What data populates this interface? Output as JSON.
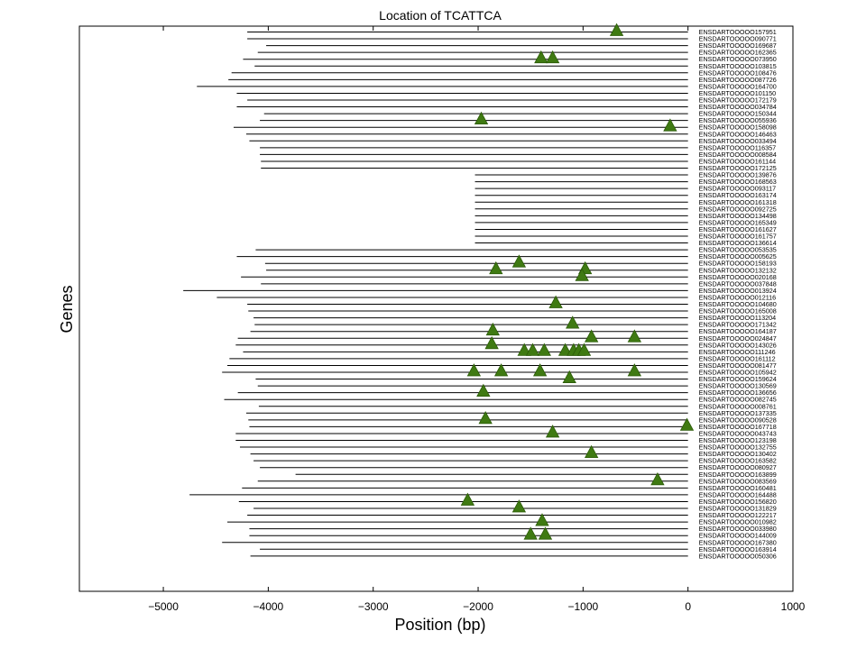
{
  "chart_data": {
    "type": "scatter",
    "title": "Location of TCATTCA",
    "xlabel": "Position (bp)",
    "ylabel": "Genes",
    "xlim": [
      -5800,
      1000
    ],
    "xticks": [
      -5000,
      -4000,
      -3000,
      -2000,
      -1000,
      0,
      1000
    ],
    "xtick_labels": [
      "−5000",
      "−4000",
      "−3000",
      "−2000",
      "−1000",
      "0",
      "1000"
    ],
    "grid": false,
    "marker": "triangle-up",
    "colors": {
      "line": "#000000",
      "marker": "#3f7a12",
      "marker_edge": "#2b5a08"
    },
    "genes": [
      {
        "name": "ENSDARTOOOOO157951",
        "start": -4200,
        "sites": [
          -680
        ]
      },
      {
        "name": "ENSDARTOOOOO090771",
        "start": -4200,
        "sites": []
      },
      {
        "name": "ENSDARTOOOOO169687",
        "start": -4020,
        "sites": []
      },
      {
        "name": "ENSDARTOOOOO162365",
        "start": -4100,
        "sites": []
      },
      {
        "name": "ENSDARTOOOOO073950",
        "start": -4240,
        "sites": [
          -1400,
          -1290
        ]
      },
      {
        "name": "ENSDARTOOOOO103815",
        "start": -4130,
        "sites": []
      },
      {
        "name": "ENSDARTOOOOO108476",
        "start": -4350,
        "sites": []
      },
      {
        "name": "ENSDARTOOOOO087726",
        "start": -4380,
        "sites": []
      },
      {
        "name": "ENSDARTOOOOO164700",
        "start": -4680,
        "sites": []
      },
      {
        "name": "ENSDARTOOOOO101150",
        "start": -4300,
        "sites": []
      },
      {
        "name": "ENSDARTOOOOO172179",
        "start": -4200,
        "sites": []
      },
      {
        "name": "ENSDARTOOOOO034784",
        "start": -4300,
        "sites": []
      },
      {
        "name": "ENSDARTOOOOO150344",
        "start": -4040,
        "sites": []
      },
      {
        "name": "ENSDARTOOOOO055936",
        "start": -4080,
        "sites": [
          -1970
        ]
      },
      {
        "name": "ENSDARTOOOOO158098",
        "start": -4330,
        "sites": [
          -170
        ]
      },
      {
        "name": "ENSDARTOOOOO146463",
        "start": -4210,
        "sites": []
      },
      {
        "name": "ENSDARTOOOOO033494",
        "start": -4180,
        "sites": []
      },
      {
        "name": "ENSDARTOOOOO116357",
        "start": -4080,
        "sites": []
      },
      {
        "name": "ENSDARTOOOOO008584",
        "start": -4080,
        "sites": []
      },
      {
        "name": "ENSDARTOOOOO161144",
        "start": -4070,
        "sites": []
      },
      {
        "name": "ENSDARTOOOOO172125",
        "start": -4070,
        "sites": []
      },
      {
        "name": "ENSDARTOOOOO139876",
        "start": -2030,
        "sites": []
      },
      {
        "name": "ENSDARTOOOOO168563",
        "start": -2030,
        "sites": []
      },
      {
        "name": "ENSDARTOOOOO093117",
        "start": -2030,
        "sites": []
      },
      {
        "name": "ENSDARTOOOOO163174",
        "start": -2030,
        "sites": []
      },
      {
        "name": "ENSDARTOOOOO161318",
        "start": -2030,
        "sites": []
      },
      {
        "name": "ENSDARTOOOOO092725",
        "start": -2030,
        "sites": []
      },
      {
        "name": "ENSDARTOOOOO134498",
        "start": -2030,
        "sites": []
      },
      {
        "name": "ENSDARTOOOOO165349",
        "start": -2030,
        "sites": []
      },
      {
        "name": "ENSDARTOOOOO161627",
        "start": -2030,
        "sites": []
      },
      {
        "name": "ENSDARTOOOOO161757",
        "start": -2030,
        "sites": []
      },
      {
        "name": "ENSDARTOOOOO136614",
        "start": -2030,
        "sites": []
      },
      {
        "name": "ENSDARTOOOOO053535",
        "start": -4120,
        "sites": []
      },
      {
        "name": "ENSDARTOOOOO005625",
        "start": -4300,
        "sites": []
      },
      {
        "name": "ENSDARTOOOOO158193",
        "start": -4030,
        "sites": [
          -1610
        ]
      },
      {
        "name": "ENSDARTOOOOO132132",
        "start": -4020,
        "sites": [
          -1830,
          -980
        ]
      },
      {
        "name": "ENSDARTOOOOO020168",
        "start": -4260,
        "sites": [
          -1010
        ]
      },
      {
        "name": "ENSDARTOOOOO037848",
        "start": -4070,
        "sites": []
      },
      {
        "name": "ENSDARTOOOOO013924",
        "start": -4810,
        "sites": []
      },
      {
        "name": "ENSDARTOOOOO012116",
        "start": -4490,
        "sites": []
      },
      {
        "name": "ENSDARTOOOOO104680",
        "start": -4200,
        "sites": [
          -1260
        ]
      },
      {
        "name": "ENSDARTOOOOO165008",
        "start": -4190,
        "sites": []
      },
      {
        "name": "ENSDARTOOOOO113204",
        "start": -4140,
        "sites": []
      },
      {
        "name": "ENSDARTOOOOO171342",
        "start": -4130,
        "sites": [
          -1100
        ]
      },
      {
        "name": "ENSDARTOOOOO164187",
        "start": -4170,
        "sites": [
          -1860
        ]
      },
      {
        "name": "ENSDARTOOOOO024847",
        "start": -4290,
        "sites": [
          -920,
          -510
        ]
      },
      {
        "name": "ENSDARTOOOOO143026",
        "start": -4310,
        "sites": [
          -1870
        ]
      },
      {
        "name": "ENSDARTOOOOO111246",
        "start": -4240,
        "sites": [
          -1560,
          -1480,
          -1370,
          -1170,
          -1090,
          -1040,
          -990
        ]
      },
      {
        "name": "ENSDARTOOOOO161112",
        "start": -4370,
        "sites": []
      },
      {
        "name": "ENSDARTOOOOO081477",
        "start": -4390,
        "sites": []
      },
      {
        "name": "ENSDARTOOOOO105942",
        "start": -4440,
        "sites": [
          -2040,
          -1780,
          -1410,
          -510
        ]
      },
      {
        "name": "ENSDARTOOOOO159624",
        "start": -4120,
        "sites": [
          -1130
        ]
      },
      {
        "name": "ENSDARTOOOOO130569",
        "start": -4100,
        "sites": []
      },
      {
        "name": "ENSDARTOOOOO136656",
        "start": -4290,
        "sites": [
          -1950
        ]
      },
      {
        "name": "ENSDARTOOOOO082745",
        "start": -4420,
        "sites": []
      },
      {
        "name": "ENSDARTOOOOO008761",
        "start": -4090,
        "sites": []
      },
      {
        "name": "ENSDARTOOOOO137335",
        "start": -4210,
        "sites": []
      },
      {
        "name": "ENSDARTOOOOO090528",
        "start": -4190,
        "sites": [
          -1930
        ]
      },
      {
        "name": "ENSDARTOOOOO167718",
        "start": -4180,
        "sites": [
          -10
        ]
      },
      {
        "name": "ENSDARTOOOOO043743",
        "start": -4310,
        "sites": [
          -1290
        ]
      },
      {
        "name": "ENSDARTOOOOO123198",
        "start": -4310,
        "sites": []
      },
      {
        "name": "ENSDARTOOOOO132755",
        "start": -4270,
        "sites": []
      },
      {
        "name": "ENSDARTOOOOO130402",
        "start": -4170,
        "sites": [
          -920
        ]
      },
      {
        "name": "ENSDARTOOOOO163582",
        "start": -4140,
        "sites": []
      },
      {
        "name": "ENSDARTOOOOO080927",
        "start": -4080,
        "sites": []
      },
      {
        "name": "ENSDARTOOOOO163899",
        "start": -3740,
        "sites": []
      },
      {
        "name": "ENSDARTOOOOO083569",
        "start": -4100,
        "sites": [
          -290
        ]
      },
      {
        "name": "ENSDARTOOOOO160481",
        "start": -4250,
        "sites": []
      },
      {
        "name": "ENSDARTOOOOO164488",
        "start": -4750,
        "sites": []
      },
      {
        "name": "ENSDARTOOOOO156820",
        "start": -4280,
        "sites": [
          -2100
        ]
      },
      {
        "name": "ENSDARTOOOOO131829",
        "start": -4140,
        "sites": [
          -1610
        ]
      },
      {
        "name": "ENSDARTOOOOO122217",
        "start": -4200,
        "sites": []
      },
      {
        "name": "ENSDARTOOOOO010982",
        "start": -4390,
        "sites": [
          -1390
        ]
      },
      {
        "name": "ENSDARTOOOOO033980",
        "start": -4180,
        "sites": []
      },
      {
        "name": "ENSDARTOOOOO144009",
        "start": -4180,
        "sites": [
          -1500,
          -1360
        ]
      },
      {
        "name": "ENSDARTOOOOO167380",
        "start": -4440,
        "sites": []
      },
      {
        "name": "ENSDARTOOOOO163914",
        "start": -4080,
        "sites": []
      },
      {
        "name": "ENSDARTOOOOO050306",
        "start": -4170,
        "sites": []
      }
    ]
  }
}
